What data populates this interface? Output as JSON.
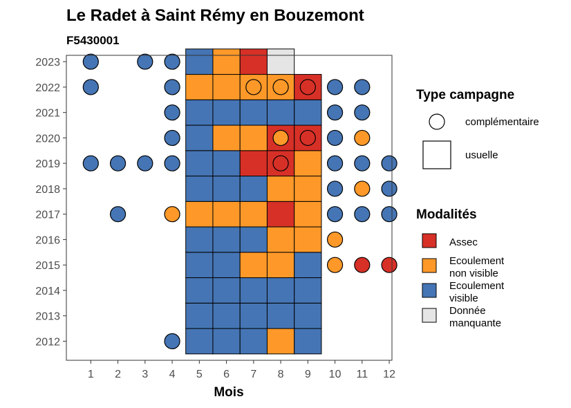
{
  "chart_data": {
    "type": "heatmap",
    "title": "Le Radet à Saint Rémy en Bouzemont",
    "subtitle": "F5430001",
    "xlabel": "Mois",
    "ylabel": "",
    "x_ticks": [
      "1",
      "2",
      "3",
      "4",
      "5",
      "6",
      "7",
      "8",
      "9",
      "10",
      "11",
      "12"
    ],
    "y_ticks": [
      "2012",
      "2013",
      "2014",
      "2015",
      "2016",
      "2017",
      "2018",
      "2019",
      "2020",
      "2021",
      "2022",
      "2023"
    ],
    "colors": {
      "assec": "#d73027",
      "non_visible": "#fe9929",
      "visible": "#4575b4",
      "missing": "#e5e5e5"
    },
    "legend_type": {
      "title": "Type campagne",
      "items": [
        {
          "shape": "circle",
          "label": "complémentaire"
        },
        {
          "shape": "square",
          "label": "usuelle"
        }
      ]
    },
    "legend_modalites": {
      "title": "Modalités",
      "items": [
        {
          "key": "assec",
          "lines": [
            "Assec"
          ]
        },
        {
          "key": "non_visible",
          "lines": [
            "Ecoulement",
            "non visible"
          ]
        },
        {
          "key": "visible",
          "lines": [
            "Ecoulement",
            "visible"
          ]
        },
        {
          "key": "missing",
          "lines": [
            "Donnée",
            "manquante"
          ]
        }
      ]
    },
    "usuelle": [
      {
        "year": 2012,
        "month": 5,
        "modalite": "visible"
      },
      {
        "year": 2012,
        "month": 6,
        "modalite": "visible"
      },
      {
        "year": 2012,
        "month": 7,
        "modalite": "visible"
      },
      {
        "year": 2012,
        "month": 8,
        "modalite": "non_visible"
      },
      {
        "year": 2012,
        "month": 9,
        "modalite": "visible"
      },
      {
        "year": 2013,
        "month": 5,
        "modalite": "visible"
      },
      {
        "year": 2013,
        "month": 6,
        "modalite": "visible"
      },
      {
        "year": 2013,
        "month": 7,
        "modalite": "visible"
      },
      {
        "year": 2013,
        "month": 8,
        "modalite": "visible"
      },
      {
        "year": 2013,
        "month": 9,
        "modalite": "visible"
      },
      {
        "year": 2014,
        "month": 5,
        "modalite": "visible"
      },
      {
        "year": 2014,
        "month": 6,
        "modalite": "visible"
      },
      {
        "year": 2014,
        "month": 7,
        "modalite": "visible"
      },
      {
        "year": 2014,
        "month": 8,
        "modalite": "visible"
      },
      {
        "year": 2014,
        "month": 9,
        "modalite": "visible"
      },
      {
        "year": 2015,
        "month": 5,
        "modalite": "visible"
      },
      {
        "year": 2015,
        "month": 6,
        "modalite": "visible"
      },
      {
        "year": 2015,
        "month": 7,
        "modalite": "non_visible"
      },
      {
        "year": 2015,
        "month": 8,
        "modalite": "non_visible"
      },
      {
        "year": 2015,
        "month": 9,
        "modalite": "visible"
      },
      {
        "year": 2016,
        "month": 5,
        "modalite": "visible"
      },
      {
        "year": 2016,
        "month": 6,
        "modalite": "visible"
      },
      {
        "year": 2016,
        "month": 7,
        "modalite": "visible"
      },
      {
        "year": 2016,
        "month": 8,
        "modalite": "non_visible"
      },
      {
        "year": 2016,
        "month": 9,
        "modalite": "non_visible"
      },
      {
        "year": 2017,
        "month": 5,
        "modalite": "non_visible"
      },
      {
        "year": 2017,
        "month": 6,
        "modalite": "non_visible"
      },
      {
        "year": 2017,
        "month": 7,
        "modalite": "non_visible"
      },
      {
        "year": 2017,
        "month": 8,
        "modalite": "assec"
      },
      {
        "year": 2017,
        "month": 9,
        "modalite": "non_visible"
      },
      {
        "year": 2018,
        "month": 5,
        "modalite": "visible"
      },
      {
        "year": 2018,
        "month": 6,
        "modalite": "visible"
      },
      {
        "year": 2018,
        "month": 7,
        "modalite": "visible"
      },
      {
        "year": 2018,
        "month": 8,
        "modalite": "non_visible"
      },
      {
        "year": 2018,
        "month": 9,
        "modalite": "non_visible"
      },
      {
        "year": 2019,
        "month": 5,
        "modalite": "visible"
      },
      {
        "year": 2019,
        "month": 6,
        "modalite": "visible"
      },
      {
        "year": 2019,
        "month": 7,
        "modalite": "assec"
      },
      {
        "year": 2019,
        "month": 8,
        "modalite": "assec"
      },
      {
        "year": 2019,
        "month": 9,
        "modalite": "non_visible"
      },
      {
        "year": 2020,
        "month": 5,
        "modalite": "visible"
      },
      {
        "year": 2020,
        "month": 6,
        "modalite": "non_visible"
      },
      {
        "year": 2020,
        "month": 7,
        "modalite": "non_visible"
      },
      {
        "year": 2020,
        "month": 8,
        "modalite": "assec"
      },
      {
        "year": 2020,
        "month": 9,
        "modalite": "assec"
      },
      {
        "year": 2021,
        "month": 5,
        "modalite": "visible"
      },
      {
        "year": 2021,
        "month": 6,
        "modalite": "visible"
      },
      {
        "year": 2021,
        "month": 7,
        "modalite": "visible"
      },
      {
        "year": 2021,
        "month": 8,
        "modalite": "visible"
      },
      {
        "year": 2021,
        "month": 9,
        "modalite": "visible"
      },
      {
        "year": 2022,
        "month": 5,
        "modalite": "non_visible"
      },
      {
        "year": 2022,
        "month": 6,
        "modalite": "non_visible"
      },
      {
        "year": 2022,
        "month": 7,
        "modalite": "non_visible"
      },
      {
        "year": 2022,
        "month": 8,
        "modalite": "non_visible"
      },
      {
        "year": 2022,
        "month": 9,
        "modalite": "assec"
      },
      {
        "year": 2023,
        "month": 5,
        "modalite": "visible"
      },
      {
        "year": 2023,
        "month": 6,
        "modalite": "non_visible"
      },
      {
        "year": 2023,
        "month": 7,
        "modalite": "assec"
      },
      {
        "year": 2023,
        "month": 8,
        "modalite": "missing"
      }
    ],
    "complementaire": [
      {
        "year": 2012,
        "month": 4,
        "modalite": "visible"
      },
      {
        "year": 2015,
        "month": 10,
        "modalite": "non_visible"
      },
      {
        "year": 2015,
        "month": 11,
        "modalite": "assec"
      },
      {
        "year": 2015,
        "month": 12,
        "modalite": "assec"
      },
      {
        "year": 2016,
        "month": 10,
        "modalite": "non_visible"
      },
      {
        "year": 2017,
        "month": 2,
        "modalite": "visible"
      },
      {
        "year": 2017,
        "month": 4,
        "modalite": "non_visible"
      },
      {
        "year": 2017,
        "month": 10,
        "modalite": "visible"
      },
      {
        "year": 2017,
        "month": 11,
        "modalite": "visible"
      },
      {
        "year": 2017,
        "month": 12,
        "modalite": "visible"
      },
      {
        "year": 2018,
        "month": 10,
        "modalite": "visible"
      },
      {
        "year": 2018,
        "month": 11,
        "modalite": "non_visible"
      },
      {
        "year": 2018,
        "month": 12,
        "modalite": "visible"
      },
      {
        "year": 2019,
        "month": 1,
        "modalite": "visible"
      },
      {
        "year": 2019,
        "month": 2,
        "modalite": "visible"
      },
      {
        "year": 2019,
        "month": 3,
        "modalite": "visible"
      },
      {
        "year": 2019,
        "month": 4,
        "modalite": "visible"
      },
      {
        "year": 2019,
        "month": 8,
        "modalite": "assec"
      },
      {
        "year": 2019,
        "month": 10,
        "modalite": "visible"
      },
      {
        "year": 2019,
        "month": 11,
        "modalite": "visible"
      },
      {
        "year": 2019,
        "month": 12,
        "modalite": "visible"
      },
      {
        "year": 2020,
        "month": 4,
        "modalite": "visible"
      },
      {
        "year": 2020,
        "month": 8,
        "modalite": "non_visible"
      },
      {
        "year": 2020,
        "month": 9,
        "modalite": "assec"
      },
      {
        "year": 2020,
        "month": 10,
        "modalite": "visible"
      },
      {
        "year": 2020,
        "month": 11,
        "modalite": "non_visible"
      },
      {
        "year": 2021,
        "month": 4,
        "modalite": "visible"
      },
      {
        "year": 2021,
        "month": 10,
        "modalite": "visible"
      },
      {
        "year": 2021,
        "month": 11,
        "modalite": "visible"
      },
      {
        "year": 2022,
        "month": 1,
        "modalite": "visible"
      },
      {
        "year": 2022,
        "month": 4,
        "modalite": "visible"
      },
      {
        "year": 2022,
        "month": 7,
        "modalite": "non_visible"
      },
      {
        "year": 2022,
        "month": 8,
        "modalite": "non_visible"
      },
      {
        "year": 2022,
        "month": 9,
        "modalite": "assec"
      },
      {
        "year": 2022,
        "month": 10,
        "modalite": "visible"
      },
      {
        "year": 2022,
        "month": 11,
        "modalite": "visible"
      },
      {
        "year": 2023,
        "month": 1,
        "modalite": "visible"
      },
      {
        "year": 2023,
        "month": 3,
        "modalite": "visible"
      },
      {
        "year": 2023,
        "month": 4,
        "modalite": "visible"
      }
    ]
  }
}
